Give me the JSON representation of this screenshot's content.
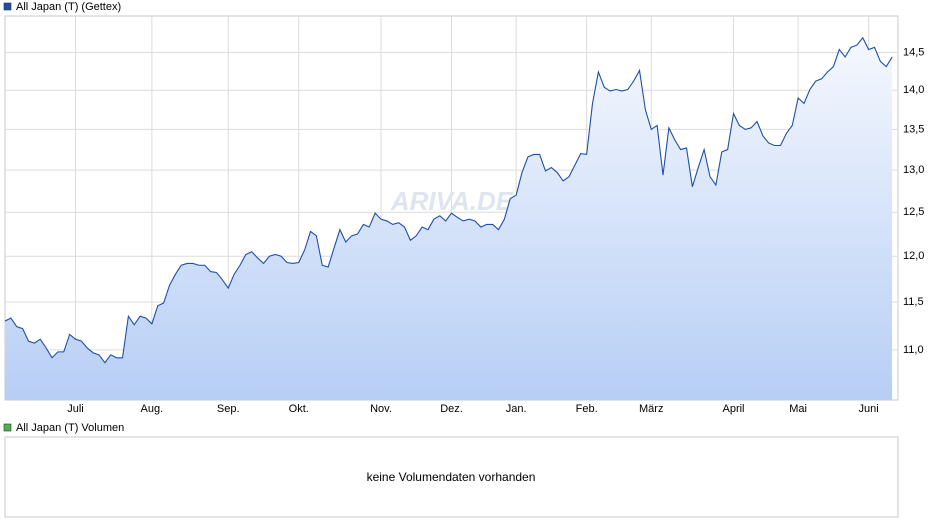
{
  "chart_data": {
    "type": "line",
    "yscale": "log",
    "grid": true,
    "series": [
      {
        "name": "All Japan (T) (Gettex)",
        "color": "#1f4fa8",
        "values": [
          11.3,
          11.33,
          11.24,
          11.22,
          11.09,
          11.07,
          11.11,
          11.02,
          10.92,
          10.98,
          10.98,
          11.16,
          11.11,
          11.09,
          11.02,
          10.97,
          10.95,
          10.87,
          10.95,
          10.92,
          10.92,
          11.35,
          11.26,
          11.35,
          11.33,
          11.27,
          11.46,
          11.49,
          11.68,
          11.8,
          11.9,
          11.92,
          11.92,
          11.9,
          11.9,
          11.83,
          11.82,
          11.74,
          11.65,
          11.8,
          11.9,
          12.02,
          12.05,
          11.98,
          11.92,
          12.0,
          12.02,
          12.0,
          11.93,
          11.92,
          11.93,
          12.07,
          12.28,
          12.23,
          11.9,
          11.88,
          12.09,
          12.3,
          12.16,
          12.23,
          12.25,
          12.36,
          12.33,
          12.49,
          12.42,
          12.4,
          12.36,
          12.38,
          12.33,
          12.18,
          12.23,
          12.33,
          12.3,
          12.42,
          12.46,
          12.4,
          12.49,
          12.44,
          12.4,
          12.42,
          12.4,
          12.33,
          12.36,
          12.36,
          12.3,
          12.42,
          12.66,
          12.7,
          12.97,
          13.16,
          13.19,
          13.19,
          12.99,
          13.03,
          12.97,
          12.87,
          12.92,
          13.06,
          13.2,
          13.19,
          13.83,
          14.24,
          14.04,
          13.99,
          14.01,
          13.99,
          14.01,
          14.12,
          14.26,
          13.75,
          13.5,
          13.55,
          12.94,
          13.52,
          13.37,
          13.25,
          13.27,
          12.8,
          13.03,
          13.25,
          12.92,
          12.82,
          13.22,
          13.25,
          13.7,
          13.55,
          13.5,
          13.52,
          13.6,
          13.42,
          13.33,
          13.3,
          13.3,
          13.45,
          13.55,
          13.9,
          13.83,
          14.01,
          14.12,
          14.15,
          14.24,
          14.31,
          14.54,
          14.44,
          14.57,
          14.6,
          14.7,
          14.54,
          14.57,
          14.38,
          14.31,
          14.44
        ]
      }
    ],
    "xlim": [
      0,
      152
    ],
    "xticks": [
      {
        "value": 12,
        "label": "Juli"
      },
      {
        "value": 25,
        "label": "Aug."
      },
      {
        "value": 38,
        "label": "Sep."
      },
      {
        "value": 50,
        "label": "Okt."
      },
      {
        "value": 64,
        "label": "Nov."
      },
      {
        "value": 76,
        "label": "Dez."
      },
      {
        "value": 87,
        "label": "Jan."
      },
      {
        "value": 99,
        "label": "Feb."
      },
      {
        "value": 110,
        "label": "März"
      },
      {
        "value": 124,
        "label": "April"
      },
      {
        "value": 135,
        "label": "Mai"
      },
      {
        "value": 147,
        "label": "Juni"
      }
    ],
    "ylim": [
      10.5,
      15.0
    ],
    "yticks": [
      {
        "value": 11,
        "label": "11,0"
      },
      {
        "value": 11.5,
        "label": "11,5"
      },
      {
        "value": 12,
        "label": "12,0"
      },
      {
        "value": 12.5,
        "label": "12,5"
      },
      {
        "value": 13,
        "label": "13,0"
      },
      {
        "value": 13.5,
        "label": "13,5"
      },
      {
        "value": 14,
        "label": "14,0"
      },
      {
        "value": 14.5,
        "label": "14,5"
      }
    ]
  },
  "watermark": "ARIVA.DE",
  "volume_panel": {
    "legend": "All Japan (T) Volumen",
    "color": "#4caf50",
    "message": "keine Volumendaten vorhanden"
  }
}
